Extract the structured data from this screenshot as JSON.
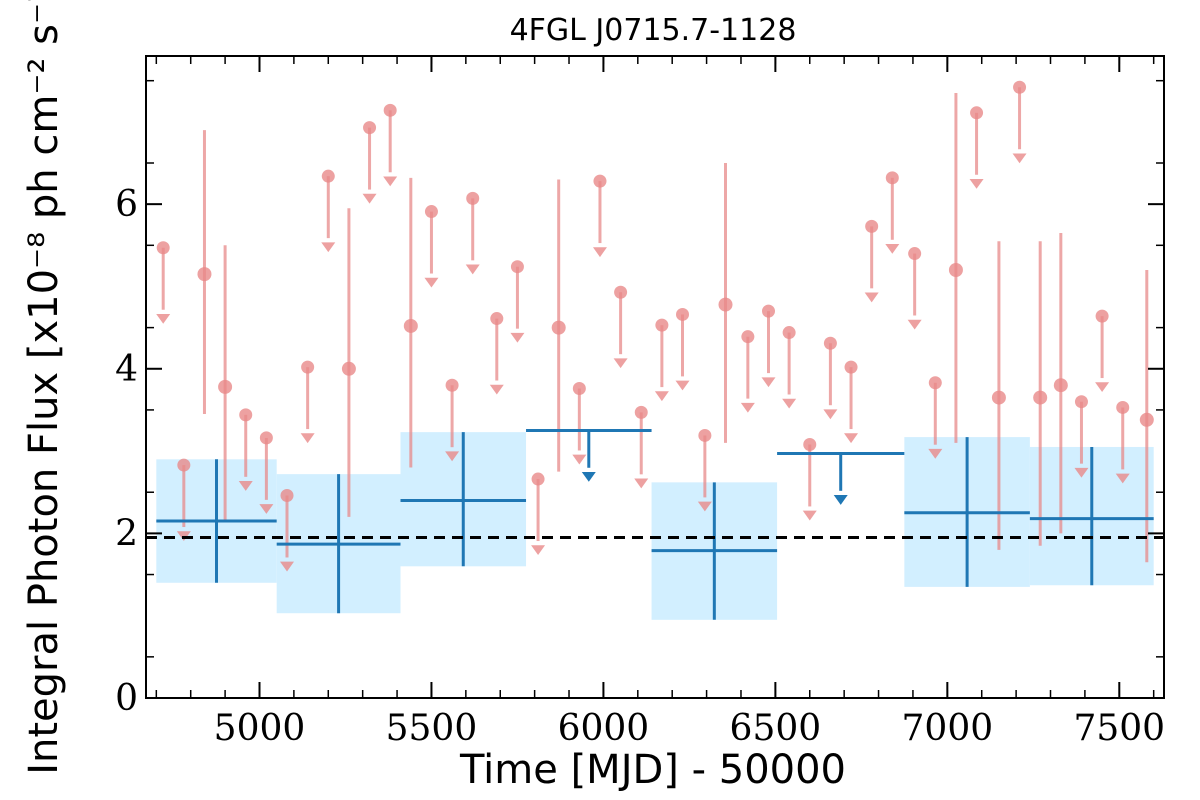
{
  "chart_data": {
    "type": "scatter",
    "title": "4FGL J0715.7-1128",
    "xlabel": "Time [MJD] - 50000",
    "ylabel": "Integral Photon Flux [x10⁻⁸ ph cm⁻² s⁻¹]",
    "xlim": [
      4670,
      7630
    ],
    "ylim": [
      0,
      7.8
    ],
    "xticks": [
      5000,
      5500,
      6000,
      6500,
      7000,
      7500
    ],
    "yticks": [
      0,
      2,
      4,
      6
    ],
    "grid": false,
    "legend": "none",
    "reference_line": 1.95,
    "colors": {
      "short_bin": "#e88a8a",
      "long_bin": "#1f77b4",
      "band": "#d2efff",
      "reference": "#000000"
    },
    "short_bins": {
      "half_width": 30,
      "detections": [
        {
          "x": 4840,
          "y": 5.15,
          "low": 3.45,
          "high": 6.9
        },
        {
          "x": 4900,
          "y": 3.78,
          "low": 2.15,
          "high": 5.5
        },
        {
          "x": 5260,
          "y": 4.0,
          "low": 2.2,
          "high": 5.95
        },
        {
          "x": 5440,
          "y": 4.52,
          "low": 2.8,
          "high": 6.32
        },
        {
          "x": 5870,
          "y": 4.5,
          "low": 2.75,
          "high": 6.3
        },
        {
          "x": 6355,
          "y": 4.78,
          "low": 3.1,
          "high": 6.5
        },
        {
          "x": 7025,
          "y": 5.2,
          "low": 3.1,
          "high": 7.35
        },
        {
          "x": 7150,
          "y": 3.65,
          "low": 1.8,
          "high": 5.55
        },
        {
          "x": 7270,
          "y": 3.65,
          "low": 1.85,
          "high": 5.55
        },
        {
          "x": 7330,
          "y": 3.8,
          "low": 2.0,
          "high": 5.65
        },
        {
          "x": 7580,
          "y": 3.38,
          "low": 1.65,
          "high": 5.2
        }
      ],
      "upper_limits": [
        {
          "x": 4720,
          "y": 5.47
        },
        {
          "x": 4780,
          "y": 2.83
        },
        {
          "x": 4960,
          "y": 3.44
        },
        {
          "x": 5020,
          "y": 3.16
        },
        {
          "x": 5080,
          "y": 2.46
        },
        {
          "x": 5140,
          "y": 4.02
        },
        {
          "x": 5200,
          "y": 6.34
        },
        {
          "x": 5320,
          "y": 6.93
        },
        {
          "x": 5380,
          "y": 7.14
        },
        {
          "x": 5500,
          "y": 5.91
        },
        {
          "x": 5560,
          "y": 3.8
        },
        {
          "x": 5620,
          "y": 6.07
        },
        {
          "x": 5690,
          "y": 4.61
        },
        {
          "x": 5750,
          "y": 5.24
        },
        {
          "x": 5810,
          "y": 2.66
        },
        {
          "x": 5930,
          "y": 3.76
        },
        {
          "x": 5990,
          "y": 6.28
        },
        {
          "x": 6050,
          "y": 4.93
        },
        {
          "x": 6110,
          "y": 3.47
        },
        {
          "x": 6170,
          "y": 4.53
        },
        {
          "x": 6230,
          "y": 4.66
        },
        {
          "x": 6295,
          "y": 3.19
        },
        {
          "x": 6420,
          "y": 4.39
        },
        {
          "x": 6480,
          "y": 4.7
        },
        {
          "x": 6540,
          "y": 4.44
        },
        {
          "x": 6600,
          "y": 3.08
        },
        {
          "x": 6660,
          "y": 4.31
        },
        {
          "x": 6720,
          "y": 4.02
        },
        {
          "x": 6780,
          "y": 5.73
        },
        {
          "x": 6840,
          "y": 6.32
        },
        {
          "x": 6905,
          "y": 5.4
        },
        {
          "x": 6965,
          "y": 3.83
        },
        {
          "x": 7085,
          "y": 7.11
        },
        {
          "x": 7210,
          "y": 7.42
        },
        {
          "x": 7390,
          "y": 3.6
        },
        {
          "x": 7450,
          "y": 4.64
        },
        {
          "x": 7510,
          "y": 3.53
        }
      ]
    },
    "long_bins": {
      "detections": [
        {
          "x0": 4700,
          "x1": 5050,
          "y": 2.15,
          "low": 1.4,
          "high": 2.9
        },
        {
          "x0": 5050,
          "x1": 5410,
          "y": 1.87,
          "low": 1.03,
          "high": 2.72
        },
        {
          "x0": 5410,
          "x1": 5775,
          "y": 2.4,
          "low": 1.6,
          "high": 3.23
        },
        {
          "x0": 6140,
          "x1": 6505,
          "y": 1.79,
          "low": 0.95,
          "high": 2.62
        },
        {
          "x0": 6875,
          "x1": 7240,
          "y": 2.25,
          "low": 1.35,
          "high": 3.17
        },
        {
          "x0": 7240,
          "x1": 7600,
          "y": 2.18,
          "low": 1.37,
          "high": 3.05
        }
      ],
      "upper_limits": [
        {
          "x0": 5775,
          "x1": 6140,
          "y": 3.25
        },
        {
          "x0": 6505,
          "x1": 6875,
          "y": 2.97
        }
      ]
    }
  }
}
